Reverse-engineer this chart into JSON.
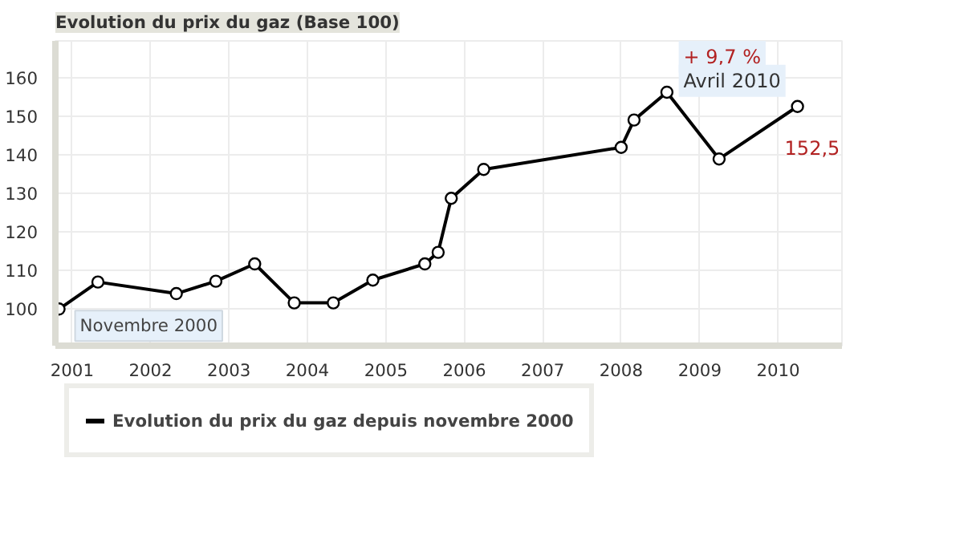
{
  "chart_data": {
    "type": "line",
    "title": "Evolution du prix du gaz (Base 100)",
    "x": [
      "2000-11",
      "2001-05",
      "2002-05",
      "2002-11",
      "2003-05",
      "2003-11",
      "2004-05",
      "2004-11",
      "2005-07",
      "2005-09",
      "2005-11",
      "2006-04",
      "2008-01",
      "2008-03",
      "2008-08",
      "2009-04",
      "2010-04"
    ],
    "series": [
      {
        "name": "Evolution du prix du gaz depuis novembre 2000",
        "color": "#000000",
        "values": [
          100,
          107,
          104,
          107.2,
          111.7,
          101.6,
          101.6,
          107.5,
          111.7,
          114.7,
          128.7,
          136.2,
          141.9,
          149,
          156.2,
          138.9,
          152.5
        ],
        "value_labels": [
          null,
          null,
          null,
          null,
          null,
          null,
          null,
          null,
          null,
          null,
          null,
          null,
          null,
          null,
          null,
          null,
          "152,5"
        ]
      }
    ],
    "xlim": [
      "2000-10-15",
      "2010-10-25"
    ],
    "ylim": [
      90.5,
      169.5
    ],
    "xticks": [
      {
        "value": "2001-01",
        "label": "2001"
      },
      {
        "value": "2002-01",
        "label": "2002"
      },
      {
        "value": "2003-01",
        "label": "2003"
      },
      {
        "value": "2004-01",
        "label": "2004"
      },
      {
        "value": "2005-01",
        "label": "2005"
      },
      {
        "value": "2006-01",
        "label": "2006"
      },
      {
        "value": "2007-01",
        "label": "2007"
      },
      {
        "value": "2008-01",
        "label": "2008"
      },
      {
        "value": "2009-01",
        "label": "2009"
      },
      {
        "value": "2010-01",
        "label": "2010"
      }
    ],
    "yticks": [
      100,
      110,
      120,
      130,
      140,
      150,
      160
    ],
    "annotations": [
      {
        "text": "Novembre 2000",
        "x": "2000-11",
        "y": 100
      },
      {
        "text": "+ 9,7 %",
        "x": "2010-04",
        "y": 152.5
      },
      {
        "text": "Avril 2010",
        "x": "2010-04",
        "y": 152.5
      }
    ],
    "grid": true,
    "legend": "bottom",
    "marker": "circle",
    "line_style": "solid"
  }
}
